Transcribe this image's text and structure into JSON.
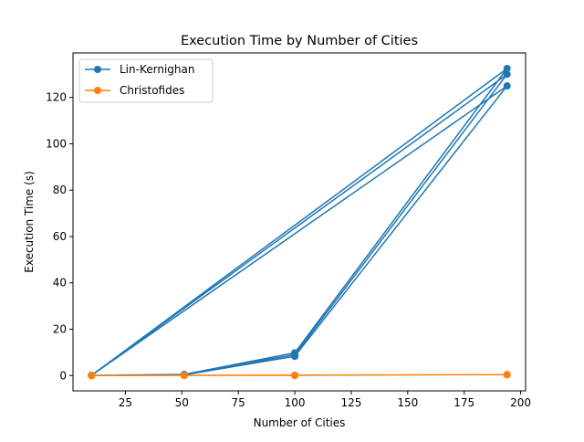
{
  "chart_data": {
    "type": "line",
    "title": "Execution Time by Number of Cities",
    "xlabel": "Number of Cities",
    "ylabel": "Execution Time (s)",
    "xlim": [
      1.8,
      202.2
    ],
    "ylim": [
      -6.6,
      139.2
    ],
    "xticks": [
      25,
      50,
      75,
      100,
      125,
      150,
      175,
      200
    ],
    "yticks": [
      0,
      20,
      40,
      60,
      80,
      100,
      120
    ],
    "grid": false,
    "legend": "top-left",
    "series": [
      {
        "name": "Lin-Kernighan",
        "color": "#1f77b4",
        "x": [
          10,
          51,
          100,
          194,
          10,
          51,
          100,
          194,
          10,
          51,
          100,
          194,
          10
        ],
        "y": [
          0.1,
          0.4,
          9.0,
          130.0,
          0.1,
          0.5,
          9.8,
          132.5,
          0.1,
          0.3,
          8.3,
          125.0,
          0.1
        ]
      },
      {
        "name": "Christofides",
        "color": "#ff7f0e",
        "x": [
          10,
          51,
          100,
          194,
          10,
          51,
          100,
          194,
          10,
          51,
          100,
          194,
          10
        ],
        "y": [
          0.0,
          0.1,
          0.1,
          0.4,
          0.0,
          0.1,
          0.1,
          0.4,
          0.0,
          0.1,
          0.1,
          0.4,
          0.0
        ]
      }
    ]
  }
}
